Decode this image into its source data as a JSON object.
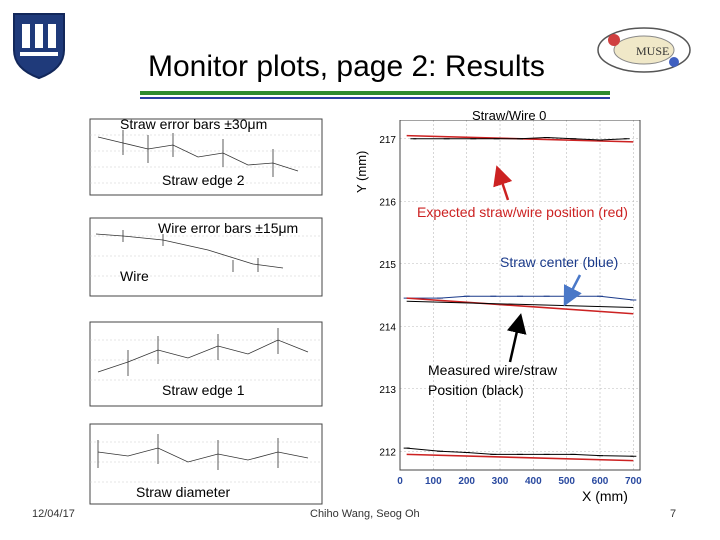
{
  "slide": {
    "title": "Monitor plots, page 2: Results",
    "date": "12/04/17",
    "authors": "Chiho Wang, Seog Oh",
    "page_number": "7",
    "colors": {
      "rule_green": "#2e8b2e",
      "rule_blue": "#2a3fa0",
      "red": "#cc2222",
      "blue": "#1a3a8a"
    }
  },
  "small_plots": {
    "straw_error_label": "Straw error bars ±30μm",
    "straw_edge2_label": "Straw edge 2",
    "wire_error_label": "Wire error bars ±15μm",
    "wire_label": "Wire",
    "straw_edge1_label": "Straw edge 1",
    "straw_diameter_label": "Straw diameter"
  },
  "main_plot": {
    "title": "Straw/Wire 0",
    "ylabel": "Y (mm)",
    "xlabel": "X (mm)",
    "x_ticks": [
      "0",
      "100",
      "200",
      "300",
      "400",
      "500",
      "600",
      "700"
    ],
    "y_ticks": [
      "217",
      "216",
      "215",
      "214",
      "213",
      "212"
    ]
  },
  "annotations": {
    "expected": "Expected straw/wire position (red)",
    "straw_center": "Straw center (blue)",
    "measured": "Measured wire/straw Position (black)"
  },
  "chart_data": {
    "type": "line",
    "title": "Straw/Wire 0",
    "xlabel": "X (mm)",
    "ylabel": "Y (mm)",
    "xlim": [
      0,
      720
    ],
    "ylim": [
      211.7,
      217.3
    ],
    "grid": true,
    "series": [
      {
        "name": "Expected straw/wire position (red)",
        "color": "#cc2222",
        "x": [
          20,
          700
        ],
        "y": [
          217.05,
          216.95
        ]
      },
      {
        "name": "Measured wire/straw Position (black)",
        "color": "#000000",
        "x": [
          40,
          140,
          220,
          290,
          360,
          440,
          520,
          600,
          680
        ],
        "y": [
          217.0,
          217.0,
          217.0,
          217.0,
          217.0,
          217.02,
          217.0,
          216.98,
          217.0
        ]
      },
      {
        "name": "Straw center (blue)",
        "color": "#1a3a8a",
        "x": [
          20,
          120,
          200,
          280,
          360,
          440,
          520,
          600,
          700
        ],
        "y": [
          214.45,
          214.45,
          214.48,
          214.48,
          214.48,
          214.48,
          214.48,
          214.48,
          214.42
        ]
      },
      {
        "name": "Expected straw/wire position (red)",
        "color": "#cc2222",
        "x": [
          20,
          700
        ],
        "y": [
          214.45,
          214.2
        ]
      },
      {
        "name": "Measured wire/straw Position (black)",
        "color": "#000000",
        "x": [
          20,
          700
        ],
        "y": [
          214.4,
          214.3
        ]
      },
      {
        "name": "Expected straw/wire position (red)",
        "color": "#cc2222",
        "x": [
          20,
          700
        ],
        "y": [
          211.95,
          211.85
        ]
      },
      {
        "name": "Measured wire/straw Position (black)",
        "color": "#000000",
        "x": [
          20,
          120,
          200,
          280,
          360,
          440,
          520,
          600,
          700
        ],
        "y": [
          212.05,
          212.0,
          211.98,
          211.95,
          211.95,
          211.95,
          211.95,
          211.93,
          211.92
        ]
      }
    ]
  }
}
